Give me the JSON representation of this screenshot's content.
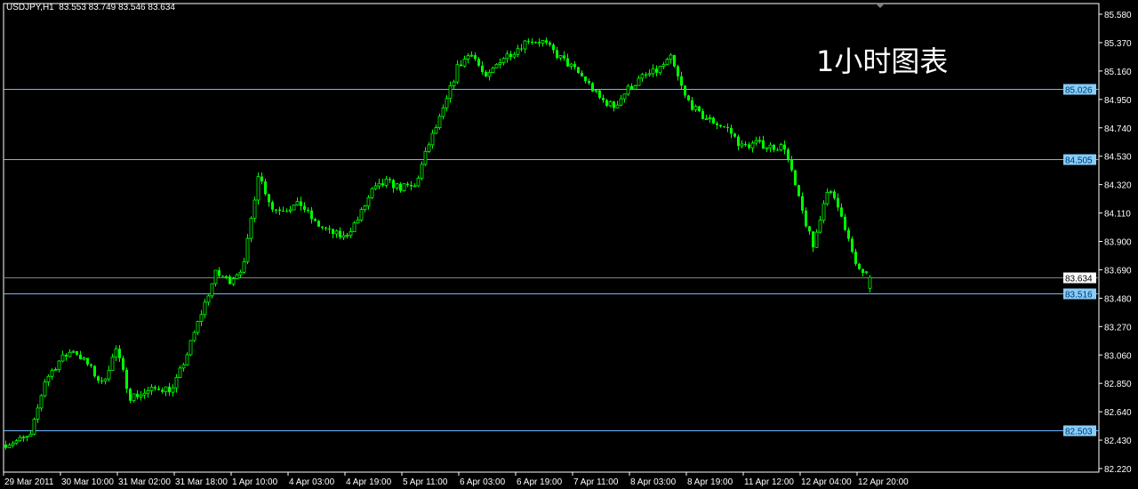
{
  "header": {
    "symbol": "USDJPY,H1",
    "ohlc": "83.553 83.749 83.546 83.634"
  },
  "annotation": "1小时图表",
  "colors": {
    "background": "#000000",
    "candle": "#00ff00",
    "axis": "#ffffff",
    "hline": "#6fb7ff",
    "hline_label_bg": "#87cefa",
    "current_line": "#808080"
  },
  "chart_data": {
    "type": "candlestick",
    "title": "USDJPY,H1",
    "timeframe": "H1",
    "ylim": [
      82.22,
      85.58
    ],
    "grid": false,
    "y_ticks": [
      "85.580",
      "85.370",
      "85.160",
      "84.950",
      "84.740",
      "84.530",
      "84.320",
      "84.110",
      "83.900",
      "83.690",
      "83.480",
      "83.270",
      "83.060",
      "82.850",
      "82.640",
      "82.430",
      "82.220"
    ],
    "x_ticks": [
      "29 Mar 2011",
      "30 Mar 10:00",
      "31 Mar 02:00",
      "31 Mar 18:00",
      "1 Apr 10:00",
      "4 Apr 03:00",
      "4 Apr 19:00",
      "5 Apr 11:00",
      "6 Apr 03:00",
      "6 Apr 19:00",
      "7 Apr 11:00",
      "8 Apr 03:00",
      "8 Apr 19:00",
      "11 Apr 12:00",
      "12 Apr 04:00",
      "12 Apr 20:00"
    ],
    "bars_per_x_tick": 16,
    "close_every_4_bars": [
      82.397,
      82.423,
      82.456,
      82.87,
      83.015,
      83.1,
      82.989,
      82.844,
      83.1,
      82.752,
      82.778,
      82.818,
      82.805,
      83.068,
      83.37,
      83.66,
      83.613,
      83.725,
      84.403,
      84.14,
      84.146,
      84.173,
      84.034,
      83.969,
      83.929,
      84.061,
      84.271,
      84.337,
      84.297,
      84.304,
      84.62,
      84.863,
      85.185,
      85.304,
      85.093,
      85.245,
      85.31,
      85.396,
      85.376,
      85.277,
      85.192,
      85.093,
      84.955,
      84.896,
      85.028,
      85.113,
      85.159,
      85.251,
      84.968,
      84.837,
      84.784,
      84.732,
      84.6,
      84.626,
      84.6,
      84.6,
      84.205,
      83.857,
      84.291,
      84.107,
      83.712,
      83.634
    ],
    "last_bar": {
      "open": 83.553,
      "high": 83.749,
      "low": 83.546,
      "close": 83.634
    },
    "horizontal_lines": [
      {
        "price": 85.026,
        "label": "85.026"
      },
      {
        "price": 84.505,
        "label": "84.505"
      },
      {
        "price": 83.516,
        "label": "83.516"
      },
      {
        "price": 82.503,
        "label": "82.503"
      }
    ],
    "current_price": {
      "price": 83.634,
      "label": "83.634"
    }
  }
}
